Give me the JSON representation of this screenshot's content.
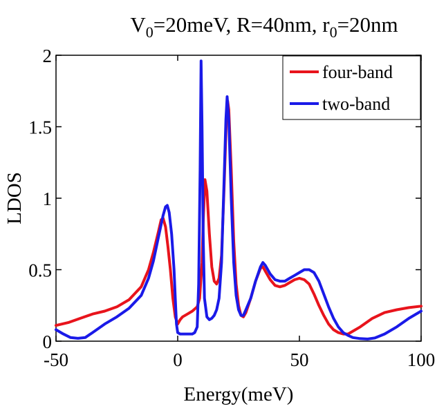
{
  "chart_data": {
    "type": "line",
    "title": {
      "main": "V",
      "sub": "0",
      "rest": "=20meV, R=40nm, r",
      "sub2": "0",
      "rest2": "=20nm"
    },
    "xlabel": "Energy(meV)",
    "ylabel": "LDOS",
    "xlim": [
      -50,
      100
    ],
    "ylim": [
      0,
      2
    ],
    "xticks": [
      -50,
      0,
      50,
      100
    ],
    "xtick_labels": [
      "-50",
      "0",
      "50",
      "100"
    ],
    "yticks": [
      0,
      0.5,
      1,
      1.5,
      2
    ],
    "ytick_labels": [
      "0",
      "0.5",
      "1",
      "1.5",
      "2"
    ],
    "grid": false,
    "legend_position": "top-right",
    "series": [
      {
        "name": "four-band",
        "color": "#e8141c",
        "points": [
          [
            -50,
            0.11
          ],
          [
            -45,
            0.13
          ],
          [
            -40,
            0.16
          ],
          [
            -35,
            0.19
          ],
          [
            -30,
            0.21
          ],
          [
            -25,
            0.24
          ],
          [
            -20,
            0.29
          ],
          [
            -15,
            0.38
          ],
          [
            -12,
            0.5
          ],
          [
            -10,
            0.62
          ],
          [
            -8,
            0.76
          ],
          [
            -6.8,
            0.85
          ],
          [
            -6,
            0.86
          ],
          [
            -5,
            0.8
          ],
          [
            -4,
            0.66
          ],
          [
            -3,
            0.5
          ],
          [
            -2,
            0.3
          ],
          [
            -1,
            0.17
          ],
          [
            0,
            0.12
          ],
          [
            1,
            0.15
          ],
          [
            2,
            0.17
          ],
          [
            4,
            0.19
          ],
          [
            6,
            0.21
          ],
          [
            8,
            0.24
          ],
          [
            9,
            0.3
          ],
          [
            10,
            0.55
          ],
          [
            10.5,
            0.85
          ],
          [
            11.2,
            1.13
          ],
          [
            12,
            1.05
          ],
          [
            13,
            0.75
          ],
          [
            14,
            0.52
          ],
          [
            15,
            0.42
          ],
          [
            16,
            0.4
          ],
          [
            17,
            0.44
          ],
          [
            18,
            0.6
          ],
          [
            19,
            1.05
          ],
          [
            20,
            1.55
          ],
          [
            20.5,
            1.68
          ],
          [
            21,
            1.62
          ],
          [
            22,
            1.2
          ],
          [
            23,
            0.7
          ],
          [
            24,
            0.4
          ],
          [
            25,
            0.25
          ],
          [
            26,
            0.18
          ],
          [
            27,
            0.17
          ],
          [
            28,
            0.2
          ],
          [
            30,
            0.3
          ],
          [
            32,
            0.42
          ],
          [
            34,
            0.51
          ],
          [
            35,
            0.52
          ],
          [
            36,
            0.49
          ],
          [
            38,
            0.43
          ],
          [
            40,
            0.39
          ],
          [
            42,
            0.38
          ],
          [
            44,
            0.39
          ],
          [
            46,
            0.41
          ],
          [
            48,
            0.43
          ],
          [
            50,
            0.44
          ],
          [
            52,
            0.43
          ],
          [
            54,
            0.4
          ],
          [
            56,
            0.33
          ],
          [
            58,
            0.25
          ],
          [
            60,
            0.18
          ],
          [
            62,
            0.12
          ],
          [
            64,
            0.08
          ],
          [
            66,
            0.06
          ],
          [
            68,
            0.05
          ],
          [
            70,
            0.05
          ],
          [
            72,
            0.07
          ],
          [
            75,
            0.1
          ],
          [
            80,
            0.16
          ],
          [
            85,
            0.2
          ],
          [
            90,
            0.22
          ],
          [
            95,
            0.235
          ],
          [
            100,
            0.245
          ]
        ]
      },
      {
        "name": "two-band",
        "color": "#1a1ae8",
        "points": [
          [
            -50,
            0.08
          ],
          [
            -47,
            0.05
          ],
          [
            -44,
            0.025
          ],
          [
            -41,
            0.02
          ],
          [
            -38,
            0.025
          ],
          [
            -35,
            0.06
          ],
          [
            -30,
            0.12
          ],
          [
            -25,
            0.17
          ],
          [
            -20,
            0.23
          ],
          [
            -15,
            0.32
          ],
          [
            -12,
            0.44
          ],
          [
            -10,
            0.56
          ],
          [
            -8,
            0.72
          ],
          [
            -6,
            0.88
          ],
          [
            -5,
            0.94
          ],
          [
            -4.3,
            0.95
          ],
          [
            -3.5,
            0.9
          ],
          [
            -2.5,
            0.75
          ],
          [
            -1.5,
            0.5
          ],
          [
            -1,
            0.3
          ],
          [
            -0.5,
            0.12
          ],
          [
            0,
            0.06
          ],
          [
            1,
            0.05
          ],
          [
            2,
            0.05
          ],
          [
            4,
            0.05
          ],
          [
            6,
            0.05
          ],
          [
            7,
            0.06
          ],
          [
            8,
            0.1
          ],
          [
            8.6,
            0.4
          ],
          [
            9.2,
            1.2
          ],
          [
            9.6,
            1.96
          ],
          [
            10,
            1.5
          ],
          [
            10.5,
            0.7
          ],
          [
            11,
            0.3
          ],
          [
            12,
            0.17
          ],
          [
            13,
            0.15
          ],
          [
            14,
            0.16
          ],
          [
            15,
            0.18
          ],
          [
            16,
            0.22
          ],
          [
            17,
            0.3
          ],
          [
            18,
            0.55
          ],
          [
            19,
            1.1
          ],
          [
            19.8,
            1.55
          ],
          [
            20.3,
            1.71
          ],
          [
            21,
            1.55
          ],
          [
            22,
            1.0
          ],
          [
            23,
            0.55
          ],
          [
            24,
            0.32
          ],
          [
            25,
            0.22
          ],
          [
            26,
            0.18
          ],
          [
            27,
            0.18
          ],
          [
            28,
            0.22
          ],
          [
            30,
            0.3
          ],
          [
            32,
            0.42
          ],
          [
            34,
            0.52
          ],
          [
            35,
            0.55
          ],
          [
            36,
            0.53
          ],
          [
            38,
            0.47
          ],
          [
            40,
            0.43
          ],
          [
            42,
            0.42
          ],
          [
            44,
            0.42
          ],
          [
            46,
            0.44
          ],
          [
            48,
            0.46
          ],
          [
            50,
            0.48
          ],
          [
            52,
            0.5
          ],
          [
            54,
            0.5
          ],
          [
            56,
            0.48
          ],
          [
            58,
            0.42
          ],
          [
            60,
            0.33
          ],
          [
            62,
            0.24
          ],
          [
            64,
            0.16
          ],
          [
            66,
            0.1
          ],
          [
            68,
            0.06
          ],
          [
            70,
            0.04
          ],
          [
            72,
            0.025
          ],
          [
            75,
            0.018
          ],
          [
            78,
            0.015
          ],
          [
            81,
            0.022
          ],
          [
            85,
            0.05
          ],
          [
            90,
            0.1
          ],
          [
            95,
            0.16
          ],
          [
            100,
            0.21
          ]
        ]
      }
    ]
  }
}
